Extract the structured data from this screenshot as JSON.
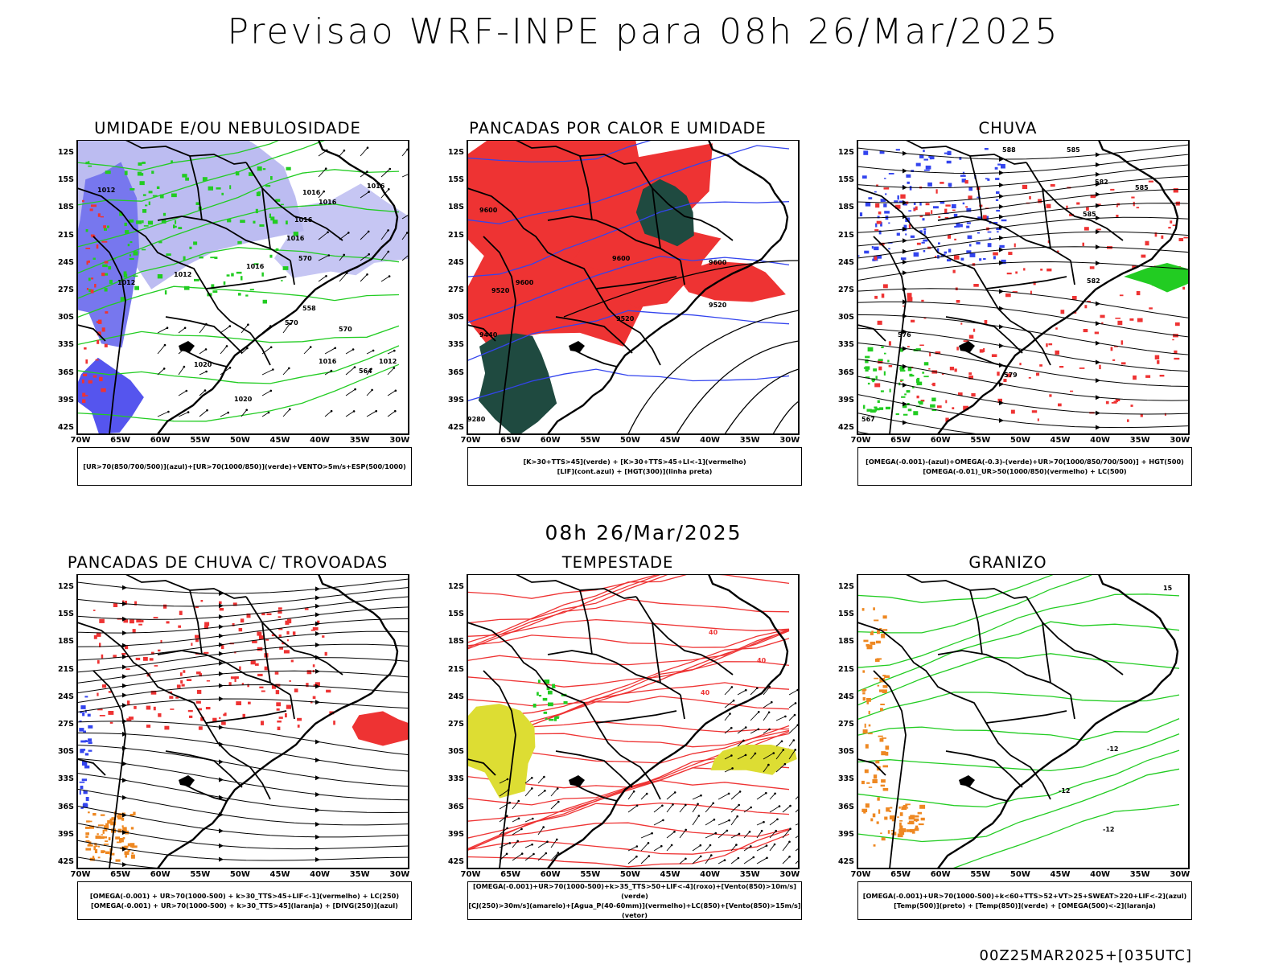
{
  "title": "Previsao WRF-INPE  para 08h 26/Mar/2025",
  "subtitle": "08h 26/Mar/2025",
  "footer": "00Z25MAR2025+[035UTC]",
  "axes": {
    "lat_labels": [
      "12S",
      "15S",
      "18S",
      "21S",
      "24S",
      "27S",
      "30S",
      "33S",
      "36S",
      "39S",
      "42S"
    ],
    "lon_labels": [
      "70W",
      "65W",
      "60W",
      "55W",
      "50W",
      "45W",
      "40W",
      "35W",
      "30W"
    ]
  },
  "panels": [
    {
      "title": "UMIDADE E/OU NEBULOSIDADE",
      "legend": [
        "[UR>70(850/700/500)](azul)+[UR>70(1000/850)](verde)+VENTO>5m/s+ESP(500/1000)"
      ],
      "labels": [
        "1012",
        "1016",
        "1016",
        "1016",
        "1016",
        "1012",
        "1012",
        "1016",
        "1020",
        "1016",
        "1012",
        "1020",
        "570",
        "570",
        "570",
        "564",
        "558",
        "1016"
      ]
    },
    {
      "title": "PANCADAS POR CALOR E UMIDADE",
      "legend": [
        "[K>30+TTS>45](verde) + [K>30+TTS>45+LI<-1](vermelho)",
        "[LIF](cont.azul) + [HGT(300)](linha preta)"
      ],
      "labels": [
        "9600",
        "9600",
        "9600",
        "9520",
        "9520",
        "9520",
        "9440",
        "9280",
        "9600"
      ]
    },
    {
      "title": "CHUVA",
      "legend": [
        "[OMEGA(-0.001)-(azul)+OMEGA(-0.3)-(verde)+UR>70(1000/850/700/500)] + HGT(500)",
        "[OMEGA(-0.01)_UR>50(1000/850)(vermelho) + LC(500)"
      ],
      "labels": [
        "588",
        "585",
        "585",
        "582",
        "582",
        "576",
        "579",
        "567",
        "585"
      ]
    },
    {
      "title": "PANCADAS DE CHUVA C/ TROVOADAS",
      "legend": [
        "[OMEGA(-0.001) + UR>70(1000-500) + k>30_TTS>45+LIF<-1](vermelho) + LC(250)",
        "[OMEGA(-0.001) + UR>70(1000-500) + k>30_TTS>45](laranja) + [DIVG(250)](azul)"
      ],
      "labels": []
    },
    {
      "title": "TEMPESTADE",
      "legend": [
        "[OMEGA(-0.001)+UR>70(1000-500)+k>35_TTS>50+LIF<-4](roxo)+[Vento(850)>10m/s](verde)",
        "[CJ(250)>30m/s](amarelo)+[Agua_P(40-60mm)](vermelho)+LC(850)+[Vento(850)>15m/s](vetor)"
      ],
      "labels": [
        "40",
        "40",
        "40"
      ]
    },
    {
      "title": "GRANIZO",
      "legend": [
        "[OMEGA(-0.001)+UR>70(1000-500)+k<60+TTS>52+VT>25+SWEAT>220+LIF<-2](azul)",
        "[Temp(500)](preto) + [Temp(850)](verde) + [OMEGA(500)<-2](laranja)"
      ],
      "labels": [
        "-12",
        "-12",
        "-12",
        "15"
      ]
    }
  ],
  "colors": {
    "frame": "#000000",
    "red": "#ee3333",
    "green": "#22cc22",
    "blue": "#3344ee",
    "lavender": "#b8b8f0",
    "darkgreen": "#1f4a40",
    "yellow": "#dddd33",
    "orange": "#ee8822"
  }
}
